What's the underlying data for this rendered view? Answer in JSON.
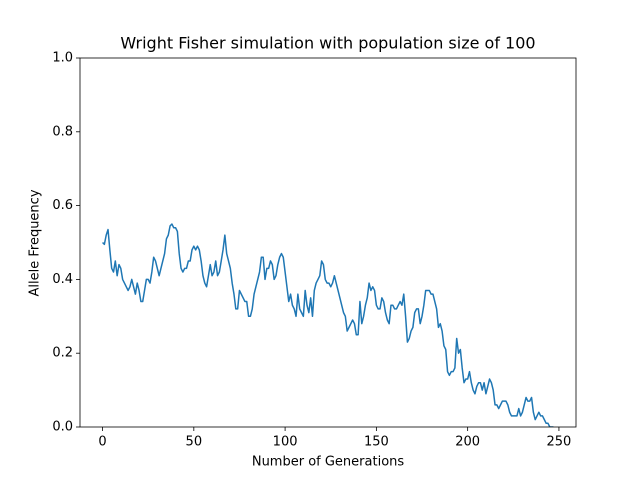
{
  "chart_data": {
    "type": "line",
    "title": "Wright Fisher simulation with population size of 100",
    "x_label": "Number of Generations",
    "y_label": "Allele Frequency",
    "x": [
      0,
      1,
      2,
      3,
      4,
      5,
      6,
      7,
      8,
      9,
      10,
      11,
      12,
      13,
      14,
      15,
      16,
      17,
      18,
      19,
      20,
      21,
      22,
      23,
      24,
      25,
      26,
      27,
      28,
      29,
      30,
      31,
      32,
      33,
      34,
      35,
      36,
      37,
      38,
      39,
      40,
      41,
      42,
      43,
      44,
      45,
      46,
      47,
      48,
      49,
      50,
      51,
      52,
      53,
      54,
      55,
      56,
      57,
      58,
      59,
      60,
      61,
      62,
      63,
      64,
      65,
      66,
      67,
      68,
      69,
      70,
      71,
      72,
      73,
      74,
      75,
      76,
      77,
      78,
      79,
      80,
      81,
      82,
      83,
      84,
      85,
      86,
      87,
      88,
      89,
      90,
      91,
      92,
      93,
      94,
      95,
      96,
      97,
      98,
      99,
      100,
      101,
      102,
      103,
      104,
      105,
      106,
      107,
      108,
      109,
      110,
      111,
      112,
      113,
      114,
      115,
      116,
      117,
      118,
      119,
      120,
      121,
      122,
      123,
      124,
      125,
      126,
      127,
      128,
      129,
      130,
      131,
      132,
      133,
      134,
      135,
      136,
      137,
      138,
      139,
      140,
      141,
      142,
      143,
      144,
      145,
      146,
      147,
      148,
      149,
      150,
      151,
      152,
      153,
      154,
      155,
      156,
      157,
      158,
      159,
      160,
      161,
      162,
      163,
      164,
      165,
      166,
      167,
      168,
      169,
      170,
      171,
      172,
      173,
      174,
      175,
      176,
      177,
      178,
      179,
      180,
      181,
      182,
      183,
      184,
      185,
      186,
      187,
      188,
      189,
      190,
      191,
      192,
      193,
      194,
      195,
      196,
      197,
      198,
      199,
      200,
      201,
      202,
      203,
      204,
      205,
      206,
      207,
      208,
      209,
      210,
      211,
      212,
      213,
      214,
      215,
      216,
      217,
      218,
      219,
      220,
      221,
      222,
      223,
      224,
      225,
      226,
      227,
      228,
      229,
      230,
      231,
      232,
      233,
      234,
      235,
      236,
      237,
      238,
      239,
      240,
      241,
      242,
      243,
      244,
      245,
      246,
      247
    ],
    "series": [
      {
        "color": "#1f77b4",
        "values": [
          0.5,
          0.495,
          0.52,
          0.535,
          0.48,
          0.43,
          0.42,
          0.45,
          0.41,
          0.44,
          0.43,
          0.4,
          0.39,
          0.38,
          0.37,
          0.38,
          0.4,
          0.38,
          0.36,
          0.39,
          0.37,
          0.34,
          0.34,
          0.37,
          0.4,
          0.4,
          0.39,
          0.42,
          0.46,
          0.45,
          0.43,
          0.41,
          0.43,
          0.45,
          0.47,
          0.51,
          0.52,
          0.545,
          0.55,
          0.54,
          0.54,
          0.53,
          0.47,
          0.43,
          0.42,
          0.43,
          0.43,
          0.45,
          0.45,
          0.48,
          0.49,
          0.48,
          0.49,
          0.48,
          0.45,
          0.41,
          0.39,
          0.38,
          0.41,
          0.44,
          0.41,
          0.42,
          0.45,
          0.41,
          0.42,
          0.45,
          0.48,
          0.52,
          0.47,
          0.45,
          0.43,
          0.39,
          0.36,
          0.32,
          0.32,
          0.37,
          0.36,
          0.35,
          0.34,
          0.34,
          0.3,
          0.3,
          0.32,
          0.36,
          0.38,
          0.4,
          0.42,
          0.46,
          0.46,
          0.4,
          0.43,
          0.43,
          0.45,
          0.44,
          0.4,
          0.41,
          0.44,
          0.46,
          0.47,
          0.46,
          0.42,
          0.38,
          0.34,
          0.36,
          0.33,
          0.32,
          0.3,
          0.36,
          0.32,
          0.31,
          0.3,
          0.37,
          0.33,
          0.31,
          0.35,
          0.3,
          0.37,
          0.39,
          0.4,
          0.41,
          0.45,
          0.44,
          0.4,
          0.39,
          0.39,
          0.38,
          0.39,
          0.41,
          0.39,
          0.37,
          0.35,
          0.33,
          0.31,
          0.3,
          0.26,
          0.27,
          0.28,
          0.29,
          0.28,
          0.25,
          0.25,
          0.34,
          0.28,
          0.3,
          0.33,
          0.35,
          0.39,
          0.37,
          0.38,
          0.37,
          0.33,
          0.32,
          0.32,
          0.35,
          0.34,
          0.31,
          0.29,
          0.28,
          0.33,
          0.33,
          0.32,
          0.32,
          0.33,
          0.34,
          0.33,
          0.36,
          0.3,
          0.23,
          0.24,
          0.26,
          0.27,
          0.31,
          0.32,
          0.32,
          0.28,
          0.3,
          0.33,
          0.37,
          0.37,
          0.37,
          0.36,
          0.36,
          0.34,
          0.32,
          0.27,
          0.28,
          0.26,
          0.22,
          0.21,
          0.15,
          0.14,
          0.15,
          0.15,
          0.16,
          0.24,
          0.2,
          0.21,
          0.16,
          0.12,
          0.13,
          0.13,
          0.15,
          0.12,
          0.1,
          0.09,
          0.11,
          0.12,
          0.12,
          0.1,
          0.12,
          0.09,
          0.11,
          0.13,
          0.12,
          0.1,
          0.06,
          0.06,
          0.05,
          0.06,
          0.07,
          0.07,
          0.07,
          0.06,
          0.04,
          0.03,
          0.03,
          0.03,
          0.03,
          0.05,
          0.03,
          0.04,
          0.06,
          0.08,
          0.07,
          0.07,
          0.08,
          0.04,
          0.02,
          0.03,
          0.04,
          0.03,
          0.03,
          0.02,
          0.01,
          0.01,
          0,
          0,
          0
        ]
      }
    ],
    "xlim": [
      -12.35,
      259.35
    ],
    "xticks": [
      0,
      50,
      100,
      150,
      200,
      250
    ],
    "ylim": [
      0,
      1
    ],
    "yticks": [
      {
        "value": 0,
        "label": "0.0"
      },
      {
        "value": 0.2,
        "label": "0.2"
      },
      {
        "value": 0.4,
        "label": "0.4"
      },
      {
        "value": 0.6,
        "label": "0.6"
      },
      {
        "value": 0.8,
        "label": "0.8"
      },
      {
        "value": 1,
        "label": "1.0"
      }
    ]
  }
}
